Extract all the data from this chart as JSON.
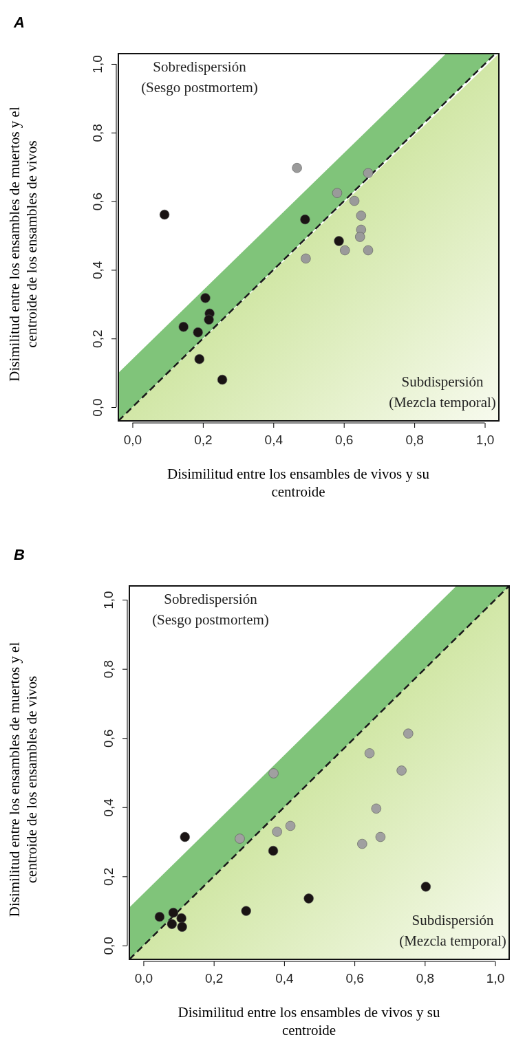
{
  "chart_data": [
    {
      "type": "scatter",
      "title": "A",
      "xlabel": "Disimilitud entre los ensambles de vivos y su\ncentroide",
      "ylabel": "Disimilitud entre los ensambles de muertos y el\ncentroide de los ensambles de vivos",
      "xlim": [
        -0.04,
        1.04
      ],
      "ylim": [
        -0.04,
        1.03
      ],
      "xticks": [
        {
          "value": 0,
          "label": "0,0"
        },
        {
          "value": 0.2,
          "label": "0,2"
        },
        {
          "value": 0.4,
          "label": "0,4"
        },
        {
          "value": 0.6,
          "label": "0,6"
        },
        {
          "value": 0.8,
          "label": "0,8"
        },
        {
          "value": 1,
          "label": "1,0"
        }
      ],
      "yticks": [
        {
          "value": 0,
          "label": "0,0"
        },
        {
          "value": 0.2,
          "label": "0,2"
        },
        {
          "value": 0.4,
          "label": "0,4"
        },
        {
          "value": 0.6,
          "label": "0,6"
        },
        {
          "value": 0.8,
          "label": "0,8"
        },
        {
          "value": 1,
          "label": "1,0"
        }
      ],
      "grid": false,
      "annotations": [
        "Sobredispersión\n(Sesgo postmortem)",
        "Subdispersión\n(Mezcla temporal)"
      ],
      "series": [
        {
          "type": "line",
          "marker": "none",
          "color": "#1a1a1a",
          "line_style": "dashed",
          "x": [
            -0.04,
            0.89,
            1.03
          ],
          "values": [
            -0.04,
            0.89,
            1.03
          ],
          "lower": [
            -0.04,
            0.89,
            1.03
          ],
          "upper": [
            0.1,
            1.03,
            1.03
          ]
        },
        {
          "marker": "circle",
          "color": "#1a1414",
          "x": [
            0.091,
            0.49,
            0.586,
            0.207,
            0.219,
            0.217,
            0.145,
            0.186,
            0.19,
            0.255
          ],
          "values": [
            0.561,
            0.547,
            0.484,
            0.318,
            0.273,
            0.255,
            0.234,
            0.218,
            0.14,
            0.08
          ]
        },
        {
          "marker": "circle",
          "color": "#9a9a9a",
          "x": [
            0.467,
            0.669,
            0.581,
            0.63,
            0.649,
            0.649,
            0.646,
            0.603,
            0.669,
            0.492
          ],
          "values": [
            0.697,
            0.682,
            0.624,
            0.601,
            0.558,
            0.517,
            0.496,
            0.457,
            0.457,
            0.433
          ]
        }
      ]
    },
    {
      "type": "scatter",
      "title": "B",
      "xlabel": "Disimilitud entre los ensambles de vivos y su\ncentroide",
      "ylabel": "Disimilitud entre los ensambles de muertos y el\ncentroide de los ensambles de vivos",
      "xlim": [
        -0.04,
        1.04
      ],
      "ylim": [
        -0.04,
        1.04
      ],
      "xticks": [
        {
          "value": 0,
          "label": "0,0"
        },
        {
          "value": 0.2,
          "label": "0,2"
        },
        {
          "value": 0.4,
          "label": "0,4"
        },
        {
          "value": 0.6,
          "label": "0,6"
        },
        {
          "value": 0.8,
          "label": "0,8"
        },
        {
          "value": 1,
          "label": "1,0"
        }
      ],
      "yticks": [
        {
          "value": 0,
          "label": "0,0"
        },
        {
          "value": 0.2,
          "label": "0,2"
        },
        {
          "value": 0.4,
          "label": "0,4"
        },
        {
          "value": 0.6,
          "label": "0,6"
        },
        {
          "value": 0.8,
          "label": "0,8"
        },
        {
          "value": 1,
          "label": "1,0"
        }
      ],
      "grid": false,
      "annotations": [
        "Sobredispersión\n(Sesgo postmortem)",
        "Subdispersión\n(Mezcla temporal)"
      ],
      "series": [
        {
          "type": "line",
          "marker": "none",
          "color": "#1a1a1a",
          "line_style": "dashed",
          "x": [
            -0.04,
            0.89,
            1.04
          ],
          "values": [
            -0.04,
            0.89,
            1.04
          ],
          "lower": [
            -0.04,
            0.89,
            1.04
          ],
          "upper": [
            0.11,
            1.04,
            1.04
          ]
        },
        {
          "marker": "circle",
          "color": "#1a1414",
          "x": [
            0.118,
            0.369,
            0.046,
            0.085,
            0.108,
            0.081,
            0.11,
            0.292,
            0.47,
            0.803
          ],
          "values": [
            0.314,
            0.274,
            0.083,
            0.095,
            0.079,
            0.062,
            0.054,
            0.1,
            0.136,
            0.17
          ]
        },
        {
          "marker": "circle",
          "color": "#a0a0a0",
          "x": [
            0.753,
            0.643,
            0.37,
            0.734,
            0.662,
            0.418,
            0.38,
            0.274,
            0.674,
            0.622
          ],
          "values": [
            0.613,
            0.556,
            0.498,
            0.506,
            0.396,
            0.346,
            0.329,
            0.309,
            0.314,
            0.294
          ]
        }
      ]
    }
  ]
}
